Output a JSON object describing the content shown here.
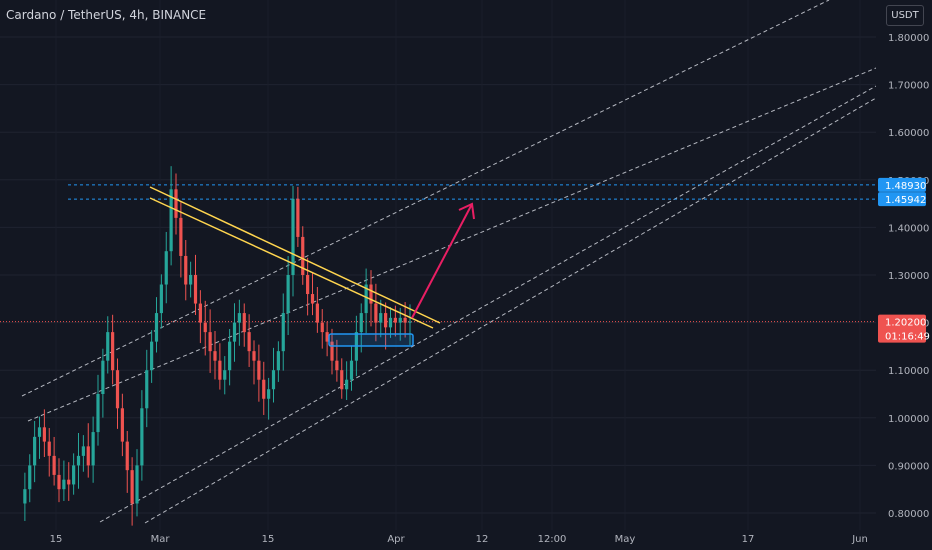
{
  "header": {
    "title": "Cardano / TetherUS, 4h, BINANCE",
    "unit": "USDT"
  },
  "chart_data": {
    "type": "candlestick",
    "symbol": "Cardano / TetherUS",
    "interval": "4h",
    "exchange": "BINANCE",
    "ylim": [
      0.78,
      1.86
    ],
    "y_ticks": [
      "1.80000",
      "1.70000",
      "1.60000",
      "1.50000",
      "1.40000",
      "1.30000",
      "1.20000",
      "1.10000",
      "1.00000",
      "0.90000",
      "0.80000"
    ],
    "x_ticks": [
      "15",
      "Mar",
      "15",
      "Apr",
      "12",
      "12:00",
      "May",
      "17",
      "Jun"
    ],
    "last_price": {
      "value": "1.20200",
      "countdown": "01:16:49"
    },
    "horizontal_levels": [
      "1.48930",
      "1.45942"
    ],
    "prices": [
      0.82,
      0.85,
      0.9,
      0.96,
      0.98,
      0.95,
      0.92,
      0.88,
      0.85,
      0.87,
      0.86,
      0.9,
      0.92,
      0.94,
      0.9,
      0.97,
      1.05,
      1.12,
      1.18,
      1.1,
      1.02,
      0.95,
      0.89,
      0.82,
      0.9,
      1.02,
      1.1,
      1.16,
      1.22,
      1.28,
      1.35,
      1.48,
      1.42,
      1.34,
      1.28,
      1.3,
      1.24,
      1.2,
      1.18,
      1.14,
      1.12,
      1.08,
      1.1,
      1.16,
      1.2,
      1.22,
      1.18,
      1.14,
      1.12,
      1.08,
      1.04,
      1.06,
      1.1,
      1.14,
      1.22,
      1.3,
      1.46,
      1.38,
      1.3,
      1.26,
      1.24,
      1.2,
      1.18,
      1.16,
      1.12,
      1.1,
      1.06,
      1.08,
      1.12,
      1.18,
      1.22,
      1.28,
      1.24,
      1.2,
      1.22,
      1.19,
      1.21,
      1.2,
      1.21,
      1.2,
      1.202
    ],
    "colors": {
      "up": "#26a69a",
      "down": "#ef5350",
      "trendline": "#ffd54f",
      "channel": "#d1d4dc",
      "level": "#2196f3",
      "arrow": "#e91e63",
      "last_price": "#ef5350"
    }
  }
}
